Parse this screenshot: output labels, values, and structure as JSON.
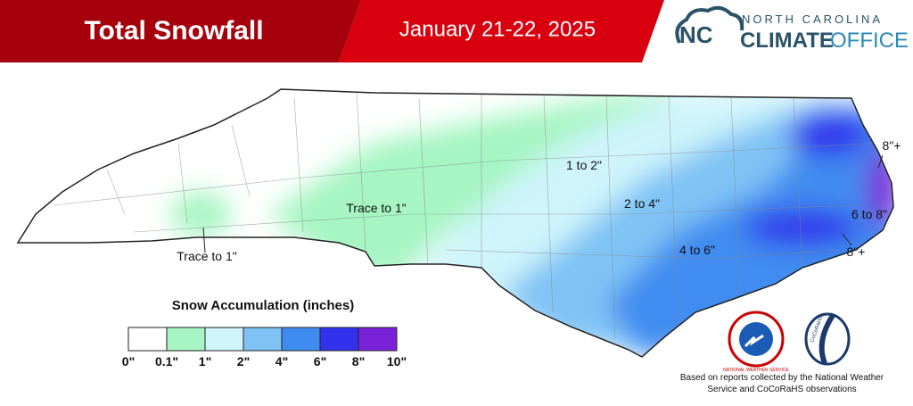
{
  "header": {
    "title": "Total Snowfall",
    "date": "January 21-22, 2025",
    "logo_top": "NORTH CAROLINA",
    "logo_climate": "CLIMATE",
    "logo_office": "OFFICE"
  },
  "map_labels": [
    "Trace to 1\"",
    "Trace to 1\"",
    "1 to 2\"",
    "2 to 4\"",
    "4 to 6\"",
    "6 to 8\"",
    "8\"+",
    "8\"+"
  ],
  "legend": {
    "title": "Snow Accumulation (inches)",
    "colors": [
      "#ffffff",
      "#a6f5c2",
      "#cff4fb",
      "#7fc3f4",
      "#3f8cf0",
      "#3232ee",
      "#7a22d8"
    ],
    "labels": [
      "0\"",
      "0.1\"",
      "1\"",
      "2\"",
      "4\"",
      "6\"",
      "8\"",
      "10\""
    ]
  },
  "badges": [
    "NATIONAL WEATHER SERVICE",
    "CoCoRaHS"
  ],
  "footer": "Based on reports collected by the National Weather Service and CoCoRaHS observations"
}
